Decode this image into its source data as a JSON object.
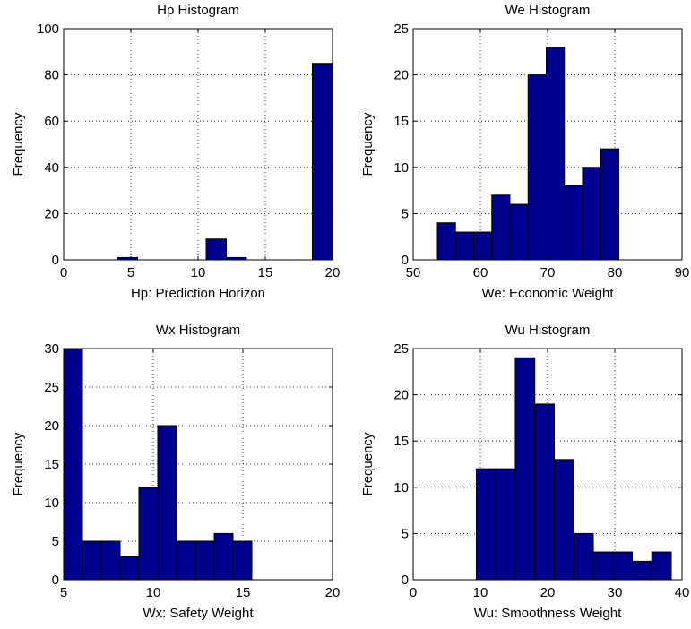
{
  "chart_data": [
    {
      "type": "bar",
      "title": "Hp Histogram",
      "xlabel": "Hp: Prediction Horizon",
      "ylabel": "Frequency",
      "xlim": [
        0,
        20
      ],
      "ylim": [
        0,
        100
      ],
      "xticks": [
        0,
        5,
        10,
        15,
        20
      ],
      "yticks": [
        0,
        20,
        40,
        60,
        80,
        100
      ],
      "grid": true,
      "bins": [
        {
          "x0": 4.0,
          "x1": 5.5,
          "value": 1
        },
        {
          "x0": 10.6,
          "x1": 12.1,
          "value": 9
        },
        {
          "x0": 12.1,
          "x1": 13.6,
          "value": 1
        },
        {
          "x0": 18.5,
          "x1": 20.0,
          "value": 85
        }
      ]
    },
    {
      "type": "bar",
      "title": "We Histogram",
      "xlabel": "We: Economic Weight",
      "ylabel": "Frequency",
      "xlim": [
        50,
        90
      ],
      "ylim": [
        0,
        25
      ],
      "xticks": [
        50,
        60,
        70,
        80,
        90
      ],
      "yticks": [
        0,
        5,
        10,
        15,
        20,
        25
      ],
      "grid": true,
      "bins": [
        {
          "x0": 53.6,
          "x1": 56.3,
          "value": 4
        },
        {
          "x0": 56.3,
          "x1": 59.0,
          "value": 3
        },
        {
          "x0": 59.0,
          "x1": 61.7,
          "value": 3
        },
        {
          "x0": 61.7,
          "x1": 64.4,
          "value": 7
        },
        {
          "x0": 64.4,
          "x1": 67.1,
          "value": 6
        },
        {
          "x0": 67.1,
          "x1": 69.8,
          "value": 20
        },
        {
          "x0": 69.8,
          "x1": 72.5,
          "value": 23
        },
        {
          "x0": 72.5,
          "x1": 75.2,
          "value": 8
        },
        {
          "x0": 75.2,
          "x1": 77.9,
          "value": 10
        },
        {
          "x0": 77.9,
          "x1": 80.6,
          "value": 12
        }
      ]
    },
    {
      "type": "bar",
      "title": "Wx Histogram",
      "xlabel": "Wx: Safety Weight",
      "ylabel": "Frequency",
      "xlim": [
        5,
        20
      ],
      "ylim": [
        0,
        30
      ],
      "xticks": [
        5,
        10,
        15,
        20
      ],
      "yticks": [
        0,
        5,
        10,
        15,
        20,
        25,
        30
      ],
      "grid": true,
      "bins": [
        {
          "x0": 5.0,
          "x1": 6.05,
          "value": 30
        },
        {
          "x0": 6.05,
          "x1": 7.1,
          "value": 5
        },
        {
          "x0": 7.1,
          "x1": 8.15,
          "value": 5
        },
        {
          "x0": 8.15,
          "x1": 9.2,
          "value": 3
        },
        {
          "x0": 9.2,
          "x1": 10.25,
          "value": 12
        },
        {
          "x0": 10.25,
          "x1": 11.3,
          "value": 20
        },
        {
          "x0": 11.3,
          "x1": 12.35,
          "value": 5
        },
        {
          "x0": 12.35,
          "x1": 13.4,
          "value": 5
        },
        {
          "x0": 13.4,
          "x1": 14.45,
          "value": 6
        },
        {
          "x0": 14.45,
          "x1": 15.5,
          "value": 5
        }
      ]
    },
    {
      "type": "bar",
      "title": "Wu Histogram",
      "xlabel": "Wu: Smoothness Weight",
      "ylabel": "Frequency",
      "xlim": [
        0,
        40
      ],
      "ylim": [
        0,
        25
      ],
      "xticks": [
        0,
        10,
        20,
        30,
        40
      ],
      "yticks": [
        0,
        5,
        10,
        15,
        20,
        25
      ],
      "grid": true,
      "bins": [
        {
          "x0": 9.4,
          "x1": 12.3,
          "value": 12
        },
        {
          "x0": 12.3,
          "x1": 15.2,
          "value": 12
        },
        {
          "x0": 15.2,
          "x1": 18.1,
          "value": 24
        },
        {
          "x0": 18.1,
          "x1": 21.0,
          "value": 19
        },
        {
          "x0": 21.0,
          "x1": 23.9,
          "value": 13
        },
        {
          "x0": 23.9,
          "x1": 26.8,
          "value": 5
        },
        {
          "x0": 26.8,
          "x1": 29.7,
          "value": 3
        },
        {
          "x0": 29.7,
          "x1": 32.6,
          "value": 3
        },
        {
          "x0": 32.6,
          "x1": 35.5,
          "value": 2
        },
        {
          "x0": 35.5,
          "x1": 38.4,
          "value": 3
        }
      ]
    }
  ]
}
